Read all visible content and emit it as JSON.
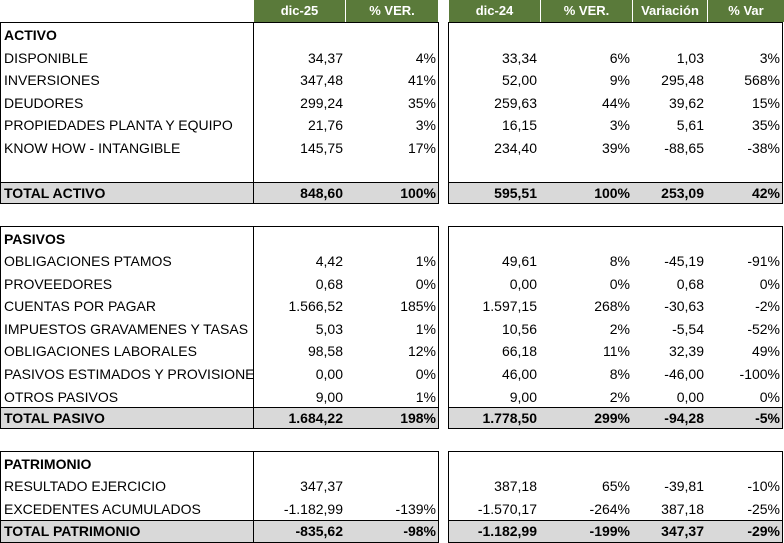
{
  "headers": [
    "dic-25",
    "% VER.",
    "dic-24",
    "% VER.",
    "Variación",
    "% Var"
  ],
  "sections": [
    {
      "id": "activo",
      "title": "ACTIVO",
      "rows": [
        {
          "label": "DISPONIBLE",
          "v": [
            "34,37",
            "4%",
            "33,34",
            "6%",
            "1,03",
            "3%"
          ]
        },
        {
          "label": "INVERSIONES",
          "v": [
            "347,48",
            "41%",
            "52,00",
            "9%",
            "295,48",
            "568%"
          ]
        },
        {
          "label": "DEUDORES",
          "v": [
            "299,24",
            "35%",
            "259,63",
            "44%",
            "39,62",
            "15%"
          ]
        },
        {
          "label": "PROPIEDADES PLANTA Y EQUIPO",
          "v": [
            "21,76",
            "3%",
            "16,15",
            "3%",
            "5,61",
            "35%"
          ]
        },
        {
          "label": "KNOW HOW - INTANGIBLE",
          "v": [
            "145,75",
            "17%",
            "234,40",
            "39%",
            "-88,65",
            "-38%"
          ]
        }
      ],
      "total": {
        "label": "TOTAL ACTIVO",
        "v": [
          "848,60",
          "100%",
          "595,51",
          "100%",
          "253,09",
          "42%"
        ]
      }
    },
    {
      "id": "pasivos",
      "title": "PASIVOS",
      "rows": [
        {
          "label": "OBLIGACIONES PTAMOS",
          "v": [
            "4,42",
            "1%",
            "49,61",
            "8%",
            "-45,19",
            "-91%"
          ]
        },
        {
          "label": "PROVEEDORES",
          "v": [
            "0,68",
            "0%",
            "0,00",
            "0%",
            "0,68",
            "0%"
          ]
        },
        {
          "label": "CUENTAS POR PAGAR",
          "v": [
            "1.566,52",
            "185%",
            "1.597,15",
            "268%",
            "-30,63",
            "-2%"
          ]
        },
        {
          "label": "IMPUESTOS GRAVAMENES Y TASAS",
          "v": [
            "5,03",
            "1%",
            "10,56",
            "2%",
            "-5,54",
            "-52%"
          ]
        },
        {
          "label": "OBLIGACIONES LABORALES",
          "v": [
            "98,58",
            "12%",
            "66,18",
            "11%",
            "32,39",
            "49%"
          ]
        },
        {
          "label": "PASIVOS ESTIMADOS Y PROVISIONES",
          "v": [
            "0,00",
            "0%",
            "46,00",
            "8%",
            "-46,00",
            "-100%"
          ]
        },
        {
          "label": "OTROS PASIVOS",
          "v": [
            "9,00",
            "1%",
            "9,00",
            "2%",
            "0,00",
            "0%"
          ]
        }
      ],
      "total": {
        "label": "TOTAL PASIVO",
        "v": [
          "1.684,22",
          "198%",
          "1.778,50",
          "299%",
          "-94,28",
          "-5%"
        ]
      }
    },
    {
      "id": "patrimonio",
      "title": "PATRIMONIO",
      "rows": [
        {
          "label": "RESULTADO EJERCICIO",
          "v": [
            "347,37",
            "",
            "387,18",
            "65%",
            "-39,81",
            "-10%"
          ]
        },
        {
          "label": "EXCEDENTES ACUMULADOS",
          "v": [
            "-1.182,99",
            "-139%",
            "-1.570,17",
            "-264%",
            "387,18",
            "-25%"
          ]
        }
      ],
      "total": {
        "label": "TOTAL PATRIMONIO",
        "v": [
          "-835,62",
          "-98%",
          "-1.182,99",
          "-199%",
          "347,37",
          "-29%"
        ]
      }
    }
  ],
  "colors": {
    "header_bg": "#5a7a3a",
    "total_bg": "#d9d9d9"
  }
}
